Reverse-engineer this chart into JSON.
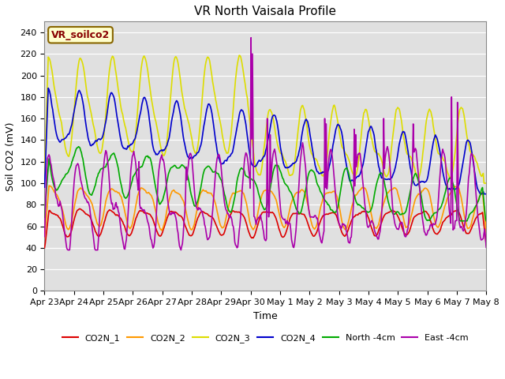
{
  "title": "VR North Vaisala Profile",
  "xlabel": "Time",
  "ylabel": "Soil CO2 (mV)",
  "annotation": "VR_soilco2",
  "ylim": [
    0,
    250
  ],
  "yticks": [
    0,
    20,
    40,
    60,
    80,
    100,
    120,
    140,
    160,
    180,
    200,
    220,
    240
  ],
  "figure_bg": "#ffffff",
  "plot_bg_color": "#e0e0e0",
  "grid_color": "#ffffff",
  "colors": {
    "CO2N_1": "#dd0000",
    "CO2N_2": "#ff9900",
    "CO2N_3": "#dddd00",
    "CO2N_4": "#0000cc",
    "North_4cm": "#00aa00",
    "East_4cm": "#aa00aa"
  },
  "x_tick_labels": [
    "Apr 23",
    "Apr 24",
    "Apr 25",
    "Apr 26",
    "Apr 27",
    "Apr 28",
    "Apr 29",
    "Apr 30",
    "May 1",
    "May 2",
    "May 3",
    "May 4",
    "May 5",
    "May 6",
    "May 7",
    "May 8"
  ],
  "annotation_box_facecolor": "#ffffcc",
  "annotation_box_edgecolor": "#886600",
  "annotation_text_color": "#880000",
  "title_fontsize": 11,
  "label_fontsize": 9,
  "tick_fontsize": 8,
  "legend_fontsize": 8,
  "linewidth": 1.2
}
